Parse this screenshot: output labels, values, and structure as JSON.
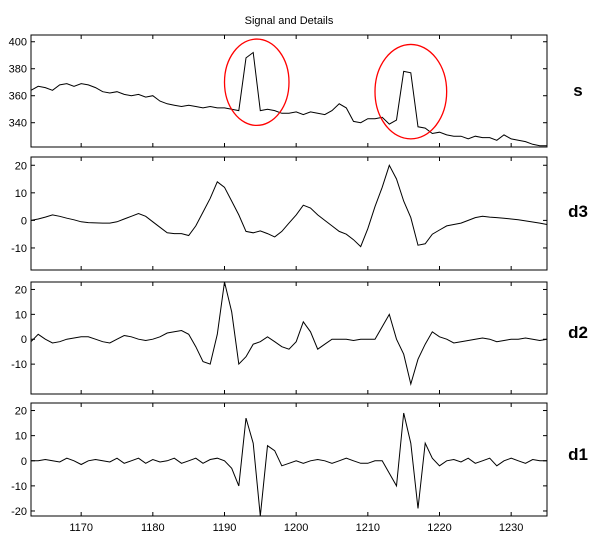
{
  "chart_data": {
    "type": "line",
    "title": "Signal and Details",
    "grid": false,
    "shared_x_ticks": [
      "1170",
      "1180",
      "1190",
      "1200",
      "1210",
      "1220",
      "1230"
    ],
    "shared_xlim": [
      1163,
      1235
    ],
    "panels": [
      {
        "label": "s",
        "ylim": [
          322,
          405
        ],
        "yticks": [
          "340",
          "360",
          "380",
          "400"
        ],
        "line_color": "#000000",
        "x": [
          1163,
          1164,
          1165,
          1166,
          1167,
          1168,
          1169,
          1170,
          1171,
          1172,
          1173,
          1174,
          1175,
          1176,
          1177,
          1178,
          1179,
          1180,
          1181,
          1182,
          1183,
          1184,
          1185,
          1186,
          1187,
          1188,
          1189,
          1190,
          1191,
          1192,
          1193,
          1194,
          1195,
          1196,
          1197,
          1198,
          1199,
          1200,
          1201,
          1202,
          1203,
          1204,
          1205,
          1206,
          1207,
          1208,
          1209,
          1210,
          1211,
          1212,
          1213,
          1214,
          1215,
          1216,
          1217,
          1218,
          1219,
          1220,
          1221,
          1222,
          1223,
          1224,
          1225,
          1226,
          1227,
          1228,
          1229,
          1230,
          1231,
          1232,
          1233,
          1234,
          1235
        ],
        "values": [
          364,
          367,
          366,
          364,
          368,
          369,
          367,
          369,
          368,
          366,
          363,
          362,
          363,
          361,
          360,
          361,
          359,
          360,
          356,
          354,
          353,
          352,
          353,
          352,
          351,
          352,
          351,
          351,
          350,
          349,
          388,
          392,
          349,
          350,
          349,
          347,
          347,
          348,
          346,
          348,
          347,
          346,
          349,
          354,
          351,
          341,
          340,
          343,
          343,
          344,
          339,
          342,
          378,
          377,
          337,
          336,
          332,
          333,
          331,
          330,
          330,
          328,
          330,
          329,
          329,
          327,
          331,
          328,
          327,
          326,
          324,
          323,
          323
        ],
        "annotations": [
          {
            "type": "ellipse",
            "color": "#ff0000",
            "x_range": [
              1190,
              1199
            ],
            "y_range": [
              338,
              402
            ]
          },
          {
            "type": "ellipse",
            "color": "#ff0000",
            "x_range": [
              1211,
              1221
            ],
            "y_range": [
              328,
              398
            ]
          }
        ]
      },
      {
        "label": "d3",
        "ylim": [
          -18,
          23
        ],
        "yticks": [
          "-10",
          "0",
          "10",
          "20"
        ],
        "line_color": "#000000",
        "x": [
          1163,
          1164,
          1165,
          1166,
          1167,
          1168,
          1169,
          1170,
          1171,
          1172,
          1173,
          1174,
          1175,
          1176,
          1177,
          1178,
          1179,
          1180,
          1181,
          1182,
          1183,
          1184,
          1185,
          1186,
          1187,
          1188,
          1189,
          1190,
          1191,
          1192,
          1193,
          1194,
          1195,
          1196,
          1197,
          1198,
          1199,
          1200,
          1201,
          1202,
          1203,
          1204,
          1205,
          1206,
          1207,
          1208,
          1209,
          1210,
          1211,
          1212,
          1213,
          1214,
          1215,
          1216,
          1217,
          1218,
          1219,
          1220,
          1221,
          1222,
          1223,
          1224,
          1225,
          1226,
          1227,
          1228,
          1229,
          1230,
          1231,
          1232,
          1233,
          1234,
          1235
        ],
        "values": [
          0,
          0.5,
          1.2,
          2,
          1.5,
          0.8,
          0.2,
          -0.5,
          -0.8,
          -0.9,
          -1,
          -1,
          -0.5,
          0.5,
          1.5,
          2.5,
          1.5,
          -0.5,
          -2.5,
          -4.5,
          -4.8,
          -4.8,
          -5.5,
          -2,
          3,
          8,
          14,
          12,
          7,
          2,
          -4,
          -4.5,
          -3.8,
          -4.8,
          -6,
          -4,
          -1,
          2,
          5.5,
          4.5,
          2,
          0,
          -2,
          -4,
          -5,
          -7,
          -9.5,
          -3,
          5,
          12,
          20,
          15,
          7,
          1,
          -9,
          -8.5,
          -5,
          -3.5,
          -2,
          -1.5,
          -1,
          0,
          1,
          1.5,
          1.2,
          1,
          0.8,
          0.5,
          0.2,
          -0.2,
          -0.6,
          -1,
          -1.5
        ]
      },
      {
        "label": "d2",
        "ylim": [
          -22,
          23
        ],
        "yticks": [
          "-10",
          "0",
          "10",
          "20"
        ],
        "line_color": "#000000",
        "x": [
          1163,
          1164,
          1165,
          1166,
          1167,
          1168,
          1169,
          1170,
          1171,
          1172,
          1173,
          1174,
          1175,
          1176,
          1177,
          1178,
          1179,
          1180,
          1181,
          1182,
          1183,
          1184,
          1185,
          1186,
          1187,
          1188,
          1189,
          1190,
          1191,
          1192,
          1193,
          1194,
          1195,
          1196,
          1197,
          1198,
          1199,
          1200,
          1201,
          1202,
          1203,
          1204,
          1205,
          1206,
          1207,
          1208,
          1209,
          1210,
          1211,
          1212,
          1213,
          1214,
          1215,
          1216,
          1217,
          1218,
          1219,
          1220,
          1221,
          1222,
          1223,
          1224,
          1225,
          1226,
          1227,
          1228,
          1229,
          1230,
          1231,
          1232,
          1233,
          1234,
          1235
        ],
        "values": [
          -1,
          2,
          0,
          -1.5,
          -1,
          0,
          0.5,
          1,
          1,
          0,
          -1,
          -1.5,
          0,
          1.5,
          1,
          0,
          -0.5,
          0,
          1,
          2.5,
          3,
          3.5,
          2,
          -3,
          -9,
          -10,
          2,
          23,
          11,
          -10,
          -7,
          -2,
          -1,
          1,
          -1,
          -3,
          -4,
          -1,
          7,
          3,
          -4,
          -2,
          0,
          0,
          0,
          -0.5,
          0,
          0,
          0,
          5,
          10,
          0,
          -6,
          -18,
          -8,
          -2,
          3,
          1,
          0,
          -1.5,
          -1,
          -0.5,
          0,
          0.5,
          0,
          -1,
          -0.5,
          0,
          0,
          0.5,
          0,
          -0.5,
          0
        ]
      },
      {
        "label": "d1",
        "ylim": [
          -22,
          23
        ],
        "yticks": [
          "-20",
          "-10",
          "0",
          "10",
          "20"
        ],
        "line_color": "#000000",
        "x": [
          1163,
          1164,
          1165,
          1166,
          1167,
          1168,
          1169,
          1170,
          1171,
          1172,
          1173,
          1174,
          1175,
          1176,
          1177,
          1178,
          1179,
          1180,
          1181,
          1182,
          1183,
          1184,
          1185,
          1186,
          1187,
          1188,
          1189,
          1190,
          1191,
          1192,
          1193,
          1194,
          1195,
          1196,
          1197,
          1198,
          1199,
          1200,
          1201,
          1202,
          1203,
          1204,
          1205,
          1206,
          1207,
          1208,
          1209,
          1210,
          1211,
          1212,
          1213,
          1214,
          1215,
          1216,
          1217,
          1218,
          1219,
          1220,
          1221,
          1222,
          1223,
          1224,
          1225,
          1226,
          1227,
          1228,
          1229,
          1230,
          1231,
          1232,
          1233,
          1234,
          1235
        ],
        "values": [
          0,
          0,
          0.5,
          0,
          -0.5,
          1,
          0,
          -1.5,
          0,
          0.5,
          0,
          -0.5,
          1,
          -1,
          0,
          1,
          -1,
          0.5,
          -0.5,
          0,
          1,
          -1,
          0,
          1,
          -1,
          0.5,
          1,
          0,
          -3,
          -10,
          17,
          7,
          -22,
          6,
          4,
          -2,
          -1,
          0,
          -1,
          0,
          0.5,
          0,
          -1,
          0,
          1,
          0,
          -1,
          -1,
          0,
          0,
          -5,
          -10,
          19,
          7,
          -19,
          7,
          1,
          -2,
          0,
          0.5,
          -0.5,
          1,
          -1,
          0,
          1,
          -2,
          0,
          1,
          0,
          -1,
          0.5,
          0,
          0
        ]
      }
    ]
  }
}
